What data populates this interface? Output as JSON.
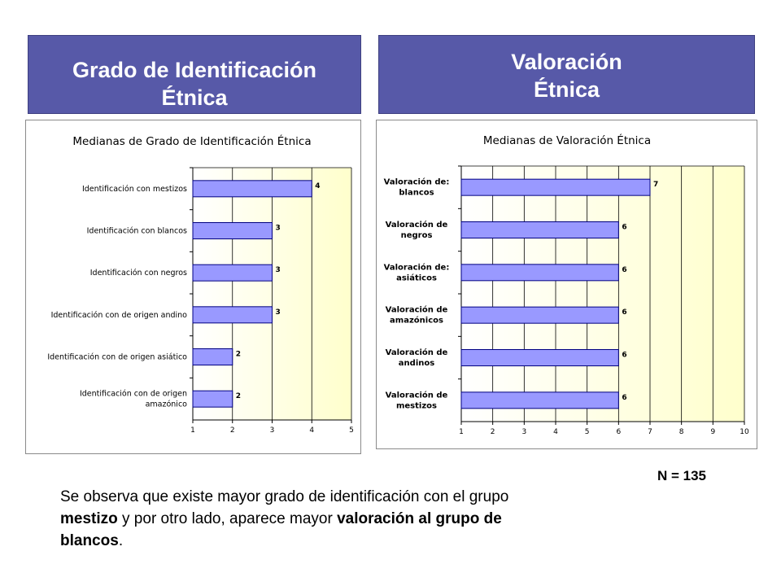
{
  "headers": {
    "left": [
      "Grado de Identificación",
      "Étnica"
    ],
    "right": [
      "Valoración",
      "Étnica"
    ]
  },
  "n_label": "N = 135",
  "summary": {
    "part1": "Se observa que existe mayor grado de identificación con el grupo ",
    "bold1": "mestizo",
    "part2": " y por otro lado, aparece mayor ",
    "bold2": "valoración al grupo de blancos",
    "part3": "."
  },
  "colors": {
    "header_bg": "#5759a8",
    "bar_fill": "#9999ff",
    "bar_stroke": "#000080",
    "plot_bg_right": "#ffffcc"
  },
  "chart_data": [
    {
      "type": "bar",
      "orientation": "horizontal",
      "title": "Medianas de Grado de Identificación Étnica",
      "categories": [
        [
          "Identificación con mestizos"
        ],
        [
          "Identificación con blancos"
        ],
        [
          "Identificación con negros"
        ],
        [
          "Identificación con de origen andino"
        ],
        [
          "Identificación con de origen asiático"
        ],
        [
          "Identificación con de origen",
          "amazónico"
        ]
      ],
      "values": [
        4,
        3,
        3,
        3,
        2,
        2
      ],
      "data_labels": [
        "4",
        "3",
        "3",
        "3",
        "2",
        "2"
      ],
      "xlim": [
        1,
        5
      ],
      "xticks": [
        1,
        2,
        3,
        4,
        5
      ],
      "grid": true
    },
    {
      "type": "bar",
      "orientation": "horizontal",
      "title": "Medianas de Valoración Étnica",
      "categories": [
        [
          "Valoración de:",
          "blancos"
        ],
        [
          "Valoración de",
          "negros"
        ],
        [
          "Valoración de:",
          "asiáticos"
        ],
        [
          "Valoración de",
          "amazónicos"
        ],
        [
          "Valoración de",
          "andinos"
        ],
        [
          "Valoración de",
          "mestizos"
        ]
      ],
      "values": [
        7,
        6,
        6,
        6,
        6,
        6
      ],
      "data_labels": [
        "7",
        "6",
        "6",
        "6",
        "6",
        "6"
      ],
      "xlim": [
        1,
        10
      ],
      "xticks": [
        1,
        2,
        3,
        4,
        5,
        6,
        7,
        8,
        9,
        10
      ],
      "grid": true
    }
  ]
}
